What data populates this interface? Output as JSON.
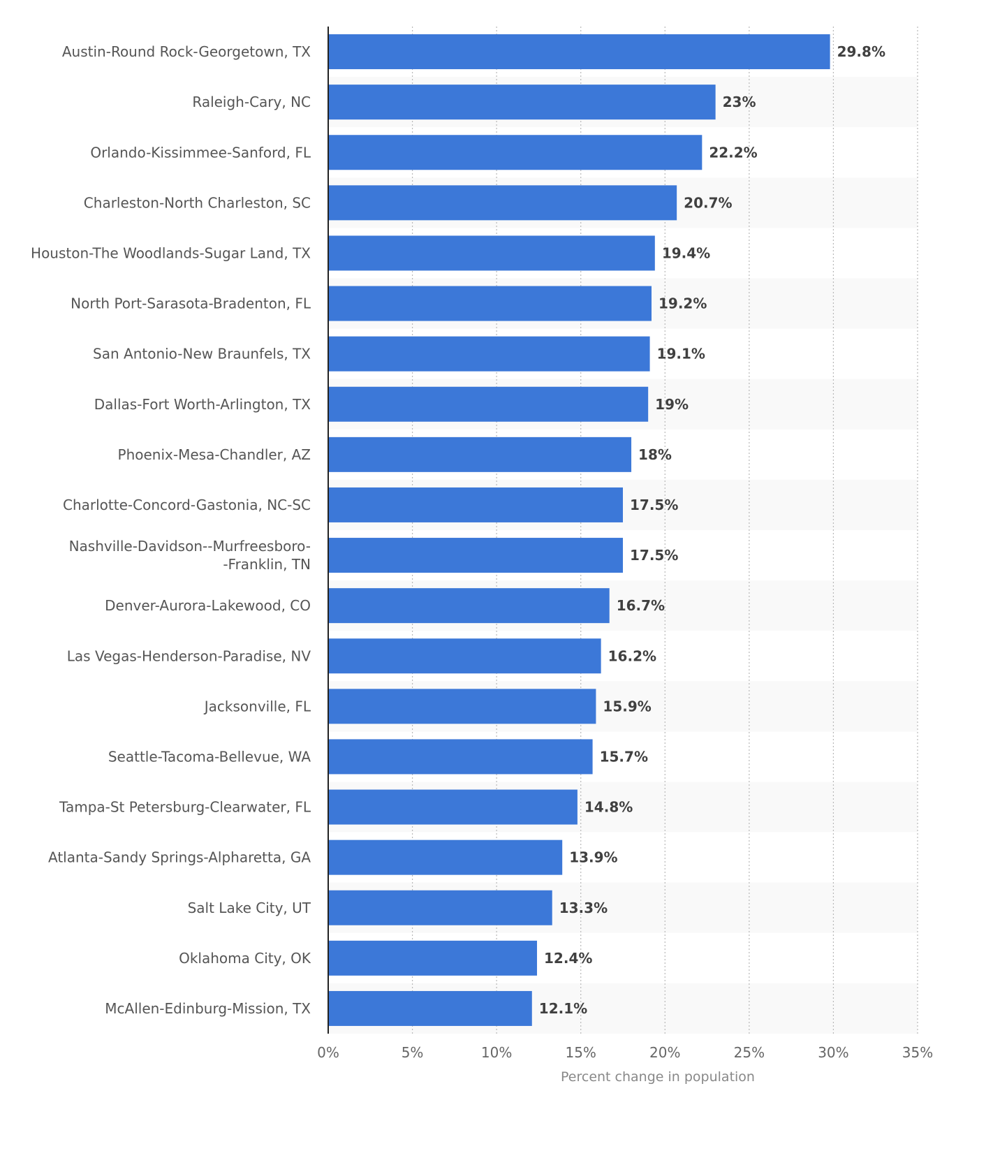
{
  "chart_data": {
    "type": "bar",
    "orientation": "horizontal",
    "categories": [
      [
        "Austin-Round Rock-Georgetown, TX"
      ],
      [
        "Raleigh-Cary, NC"
      ],
      [
        "Orlando-Kissimmee-Sanford, FL"
      ],
      [
        "Charleston-North Charleston, SC"
      ],
      [
        "Houston-The Woodlands-Sugar Land, TX"
      ],
      [
        "North Port-Sarasota-Bradenton, FL"
      ],
      [
        "San Antonio-New Braunfels, TX"
      ],
      [
        "Dallas-Fort Worth-Arlington, TX"
      ],
      [
        "Phoenix-Mesa-Chandler, AZ"
      ],
      [
        "Charlotte-Concord-Gastonia, NC-SC"
      ],
      [
        "Nashville-Davidson--Murfreesboro-",
        "-Franklin, TN"
      ],
      [
        "Denver-Aurora-Lakewood, CO"
      ],
      [
        "Las Vegas-Henderson-Paradise, NV"
      ],
      [
        "Jacksonville, FL"
      ],
      [
        "Seattle-Tacoma-Bellevue, WA"
      ],
      [
        "Tampa-St Petersburg-Clearwater, FL"
      ],
      [
        "Atlanta-Sandy Springs-Alpharetta, GA"
      ],
      [
        "Salt Lake City, UT"
      ],
      [
        "Oklahoma City, OK"
      ],
      [
        "McAllen-Edinburg-Mission, TX"
      ]
    ],
    "values": [
      29.8,
      23,
      22.2,
      20.7,
      19.4,
      19.2,
      19.1,
      19,
      18,
      17.5,
      17.5,
      16.7,
      16.2,
      15.9,
      15.7,
      14.8,
      13.9,
      13.3,
      12.4,
      12.1
    ],
    "value_labels": [
      "29.8%",
      "23%",
      "22.2%",
      "20.7%",
      "19.4%",
      "19.2%",
      "19.1%",
      "19%",
      "18%",
      "17.5%",
      "17.5%",
      "16.7%",
      "16.2%",
      "15.9%",
      "15.7%",
      "14.8%",
      "13.9%",
      "13.3%",
      "12.4%",
      "12.1%"
    ],
    "xlabel": "Percent change in population",
    "xlim": [
      0,
      35
    ],
    "xticks": [
      0,
      5,
      10,
      15,
      20,
      25,
      30,
      35
    ],
    "xtick_labels": [
      "0%",
      "5%",
      "10%",
      "15%",
      "20%",
      "25%",
      "30%",
      "35%"
    ],
    "grid": "vertical dotted",
    "bar_color": "#3c78d8",
    "stripe_color": "#f9f9f9"
  }
}
